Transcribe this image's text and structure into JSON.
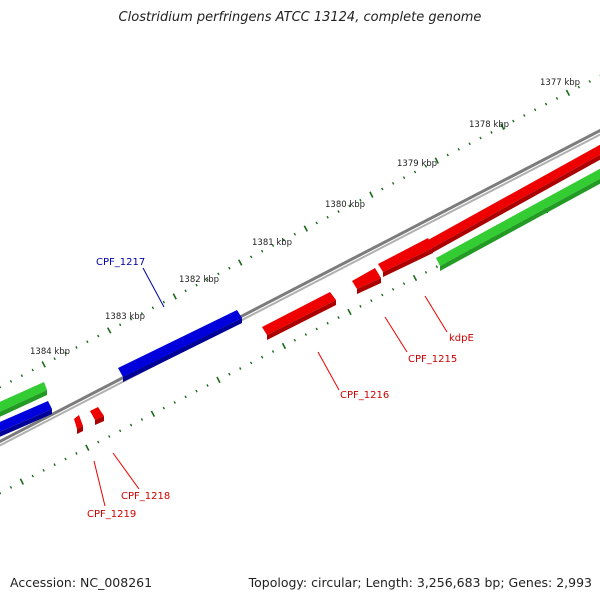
{
  "title": "Clostridium perfringens ATCC 13124, complete genome",
  "footer": {
    "accession": "Accession: NC_008261",
    "topology": "Topology: circular; Length: 3,256,683 bp; Genes: 2,993"
  },
  "colors": {
    "backbone": "#8a8a8a",
    "red": "#ee0000",
    "blue": "#0000dd",
    "green": "#33cc33",
    "tick": "#1a6b1a",
    "red_label": "#cc0000",
    "blue_label": "#0000aa"
  },
  "scale_labels": [
    "1377 kbp",
    "1378 kbp",
    "1379 kbp",
    "1380 kbp",
    "1381 kbp",
    "1382 kbp",
    "1383 kbp",
    "1384 kbp"
  ],
  "gene_labels": [
    {
      "text": "kdpE",
      "color": "red"
    },
    {
      "text": "CPF_1215",
      "color": "red"
    },
    {
      "text": "CPF_1216",
      "color": "red"
    },
    {
      "text": "CPF_1217",
      "color": "blue"
    },
    {
      "text": "CPF_1218",
      "color": "red"
    },
    {
      "text": "CPF_1219",
      "color": "red"
    }
  ]
}
